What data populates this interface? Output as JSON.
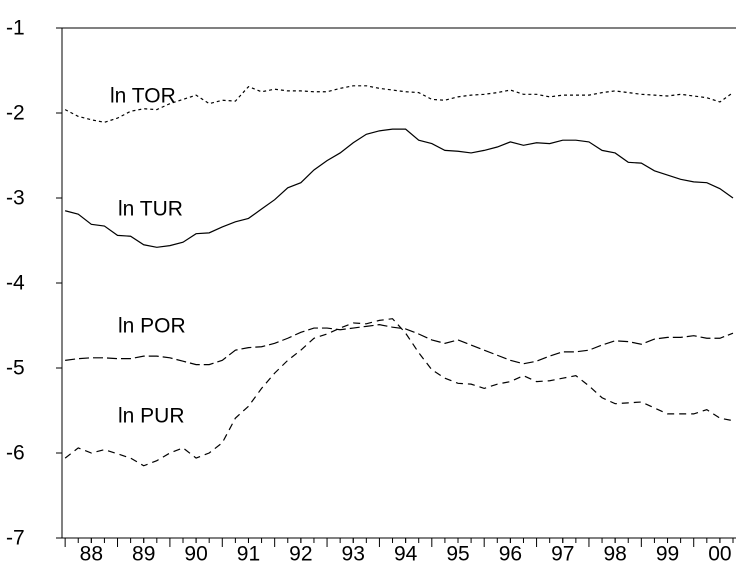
{
  "chart_data": {
    "type": "line",
    "x": [
      1988,
      1988.25,
      1988.5,
      1988.75,
      1989,
      1989.25,
      1989.5,
      1989.75,
      1990,
      1990.25,
      1990.5,
      1990.75,
      1991,
      1991.25,
      1991.5,
      1991.75,
      1992,
      1992.25,
      1992.5,
      1992.75,
      1993,
      1993.25,
      1993.5,
      1993.75,
      1994,
      1994.25,
      1994.5,
      1994.75,
      1995,
      1995.25,
      1995.5,
      1995.75,
      1996,
      1996.25,
      1996.5,
      1996.75,
      1997,
      1997.25,
      1997.5,
      1997.75,
      1998,
      1998.25,
      1998.5,
      1998.75,
      1999,
      1999.25,
      1999.5,
      1999.75,
      2000,
      2000.25,
      2000.5,
      2000.75
    ],
    "series": [
      {
        "name": "ln TOR",
        "color": "#000000",
        "values": [
          -1.96,
          -2.04,
          -2.08,
          -2.11,
          -2.06,
          -1.98,
          -1.95,
          -1.96,
          -1.89,
          -1.84,
          -1.79,
          -1.89,
          -1.85,
          -1.86,
          -1.69,
          -1.75,
          -1.72,
          -1.74,
          -1.74,
          -1.75,
          -1.75,
          -1.71,
          -1.68,
          -1.68,
          -1.71,
          -1.73,
          -1.75,
          -1.76,
          -1.84,
          -1.85,
          -1.81,
          -1.79,
          -1.78,
          -1.76,
          -1.73,
          -1.78,
          -1.78,
          -1.81,
          -1.79,
          -1.79,
          -1.79,
          -1.76,
          -1.74,
          -1.76,
          -1.78,
          -1.79,
          -1.8,
          -1.78,
          -1.8,
          -1.82,
          -1.87,
          -1.76
        ]
      },
      {
        "name": "ln TUR",
        "color": "#000000",
        "values": [
          -3.15,
          -3.19,
          -3.31,
          -3.33,
          -3.44,
          -3.45,
          -3.55,
          -3.58,
          -3.56,
          -3.52,
          -3.42,
          -3.41,
          -3.34,
          -3.28,
          -3.24,
          -3.13,
          -3.02,
          -2.88,
          -2.82,
          -2.67,
          -2.56,
          -2.47,
          -2.35,
          -2.25,
          -2.21,
          -2.19,
          -2.19,
          -2.32,
          -2.36,
          -2.44,
          -2.45,
          -2.47,
          -2.44,
          -2.4,
          -2.34,
          -2.38,
          -2.35,
          -2.36,
          -2.32,
          -2.32,
          -2.34,
          -2.44,
          -2.47,
          -2.58,
          -2.59,
          -2.68,
          -2.73,
          -2.78,
          -2.81,
          -2.82,
          -2.89,
          -3.0
        ]
      },
      {
        "name": "ln POR",
        "color": "#000000",
        "values": [
          -4.91,
          -4.89,
          -4.88,
          -4.88,
          -4.89,
          -4.89,
          -4.86,
          -4.86,
          -4.88,
          -4.92,
          -4.96,
          -4.96,
          -4.91,
          -4.79,
          -4.76,
          -4.75,
          -4.71,
          -4.65,
          -4.58,
          -4.53,
          -4.53,
          -4.55,
          -4.53,
          -4.51,
          -4.49,
          -4.52,
          -4.54,
          -4.6,
          -4.67,
          -4.71,
          -4.67,
          -4.73,
          -4.79,
          -4.85,
          -4.91,
          -4.95,
          -4.92,
          -4.86,
          -4.81,
          -4.81,
          -4.79,
          -4.73,
          -4.68,
          -4.69,
          -4.72,
          -4.66,
          -4.64,
          -4.64,
          -4.62,
          -4.65,
          -4.65,
          -4.59
        ]
      },
      {
        "name": "ln PUR",
        "color": "#000000",
        "values": [
          -6.06,
          -5.94,
          -6.0,
          -5.96,
          -6.01,
          -6.06,
          -6.15,
          -6.09,
          -6.0,
          -5.94,
          -6.06,
          -6.0,
          -5.88,
          -5.59,
          -5.45,
          -5.24,
          -5.06,
          -4.91,
          -4.79,
          -4.65,
          -4.6,
          -4.53,
          -4.47,
          -4.48,
          -4.44,
          -4.42,
          -4.59,
          -4.82,
          -5.02,
          -5.12,
          -5.18,
          -5.19,
          -5.24,
          -5.19,
          -5.16,
          -5.09,
          -5.16,
          -5.15,
          -5.12,
          -5.09,
          -5.21,
          -5.35,
          -5.42,
          -5.41,
          -5.4,
          -5.47,
          -5.54,
          -5.54,
          -5.54,
          -5.49,
          -5.59,
          -5.62
        ]
      }
    ],
    "xlim": [
      1987.94,
      2000.75
    ],
    "xticks": [
      {
        "value": 1988.5,
        "label": "88"
      },
      {
        "value": 1989.5,
        "label": "89"
      },
      {
        "value": 1990.5,
        "label": "90"
      },
      {
        "value": 1991.5,
        "label": "91"
      },
      {
        "value": 1992.5,
        "label": "92"
      },
      {
        "value": 1993.5,
        "label": "93"
      },
      {
        "value": 1994.5,
        "label": "94"
      },
      {
        "value": 1995.5,
        "label": "95"
      },
      {
        "value": 1996.5,
        "label": "96"
      },
      {
        "value": 1997.5,
        "label": "97"
      },
      {
        "value": 1998.5,
        "label": "98"
      },
      {
        "value": 1999.5,
        "label": "99"
      },
      {
        "value": 2000.5,
        "label": "00"
      }
    ],
    "ylim": [
      -7,
      -1
    ],
    "yticks": [
      -1,
      -2,
      -3,
      -4,
      -5,
      -6,
      -7
    ],
    "grid": false
  }
}
